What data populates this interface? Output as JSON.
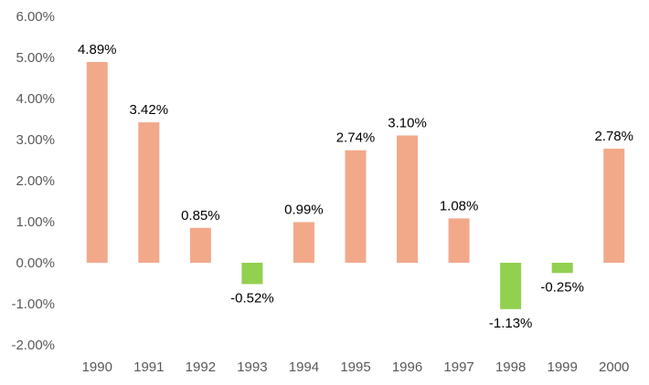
{
  "chart_data": {
    "type": "bar",
    "title": "",
    "xlabel": "",
    "ylabel": "",
    "ylim": [
      -2,
      6
    ],
    "y_tick_values": [
      -2,
      -1,
      0,
      1,
      2,
      3,
      4,
      5,
      6
    ],
    "y_tick_labels": [
      "-2.00%",
      "-1.00%",
      "0.00%",
      "1.00%",
      "2.00%",
      "3.00%",
      "4.00%",
      "5.00%",
      "6.00%"
    ],
    "grid": false,
    "legend": "none",
    "categories": [
      "1990",
      "1991",
      "1992",
      "1993",
      "1994",
      "1995",
      "1996",
      "1997",
      "1998",
      "1999",
      "2000"
    ],
    "values": [
      4.89,
      3.42,
      0.85,
      -0.52,
      0.99,
      2.74,
      3.1,
      1.08,
      -1.13,
      -0.25,
      2.78
    ],
    "data_labels": [
      "4.89%",
      "3.42%",
      "0.85%",
      "-0.52%",
      "0.99%",
      "2.74%",
      "3.10%",
      "1.08%",
      "-1.13%",
      "-0.25%",
      "2.78%"
    ],
    "colors": {
      "positive": "#F2A98A",
      "negative": "#92D050"
    }
  }
}
